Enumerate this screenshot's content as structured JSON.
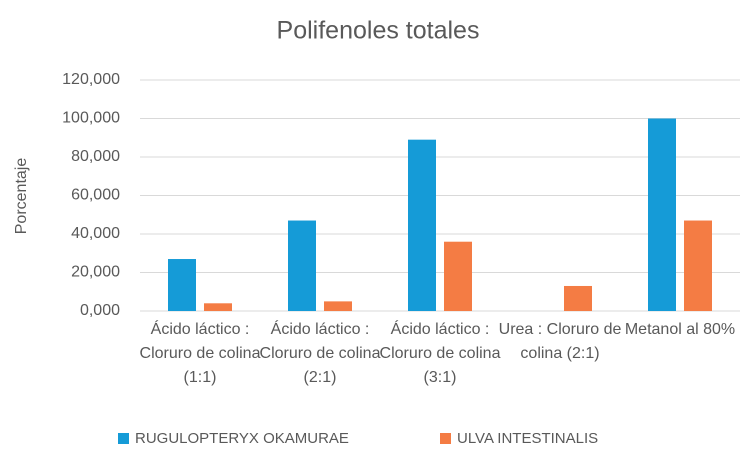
{
  "chart_data": {
    "type": "bar",
    "title": "Polifenoles totales",
    "y_label": "Porcentaje",
    "categories": [
      "Ácido láctico : Cloruro de colina (1:1)",
      "Ácido láctico : Cloruro de colina (2:1)",
      "Ácido láctico : Cloruro de colina (3:1)",
      "Urea : Cloruro de colina (2:1)",
      "Metanol al 80%"
    ],
    "series": [
      {
        "name": "RUGULOPTERYX OKAMURAE",
        "color": "#159bd7",
        "values": [
          27,
          47,
          89,
          null,
          100
        ]
      },
      {
        "name": "ULVA INTESTINALIS",
        "color": "#f47c44",
        "values": [
          4,
          5,
          36,
          13,
          47
        ]
      }
    ],
    "ylim": [
      0,
      120
    ],
    "yticks": [
      {
        "value": 0,
        "label": "0,000"
      },
      {
        "value": 20,
        "label": "20,000"
      },
      {
        "value": 40,
        "label": "40,000"
      },
      {
        "value": 60,
        "label": "60,000"
      },
      {
        "value": 80,
        "label": "80,000"
      },
      {
        "value": 100,
        "label": "100,000"
      },
      {
        "value": 120,
        "label": "120,000"
      }
    ],
    "grid": true,
    "legend": "bottom"
  }
}
